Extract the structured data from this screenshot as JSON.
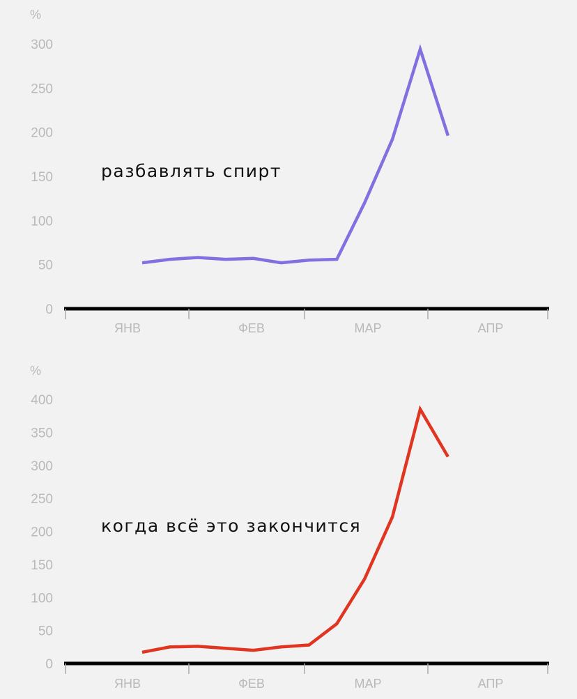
{
  "chart_data": [
    {
      "type": "line",
      "unit": "%",
      "annotation": "разбавлять спирт",
      "color": "#8370e0",
      "yticks": [
        0,
        50,
        100,
        150,
        200,
        250,
        300
      ],
      "ylim": [
        0,
        300
      ],
      "month_labels": [
        "ЯНВ",
        "ФЕВ",
        "МАР",
        "АПР"
      ],
      "x": [
        0,
        1,
        2,
        3,
        4,
        5,
        6,
        7,
        8,
        9,
        10,
        11
      ],
      "series": [
        {
          "values": [
            52,
            56,
            58,
            56,
            57,
            52,
            55,
            56,
            120,
            192,
            294,
            196
          ]
        }
      ]
    },
    {
      "type": "line",
      "unit": "%",
      "annotation": "когда всё это закончится",
      "color": "#e03520",
      "yticks": [
        0,
        50,
        100,
        150,
        200,
        250,
        300,
        350,
        400
      ],
      "ylim": [
        0,
        400
      ],
      "month_labels": [
        "ЯНВ",
        "ФЕВ",
        "МАР",
        "АПР"
      ],
      "x": [
        0,
        1,
        2,
        3,
        4,
        5,
        6,
        7,
        8,
        9,
        10,
        11
      ],
      "series": [
        {
          "values": [
            17,
            25,
            26,
            23,
            20,
            25,
            28,
            60,
            128,
            222,
            385,
            313
          ]
        }
      ]
    }
  ]
}
